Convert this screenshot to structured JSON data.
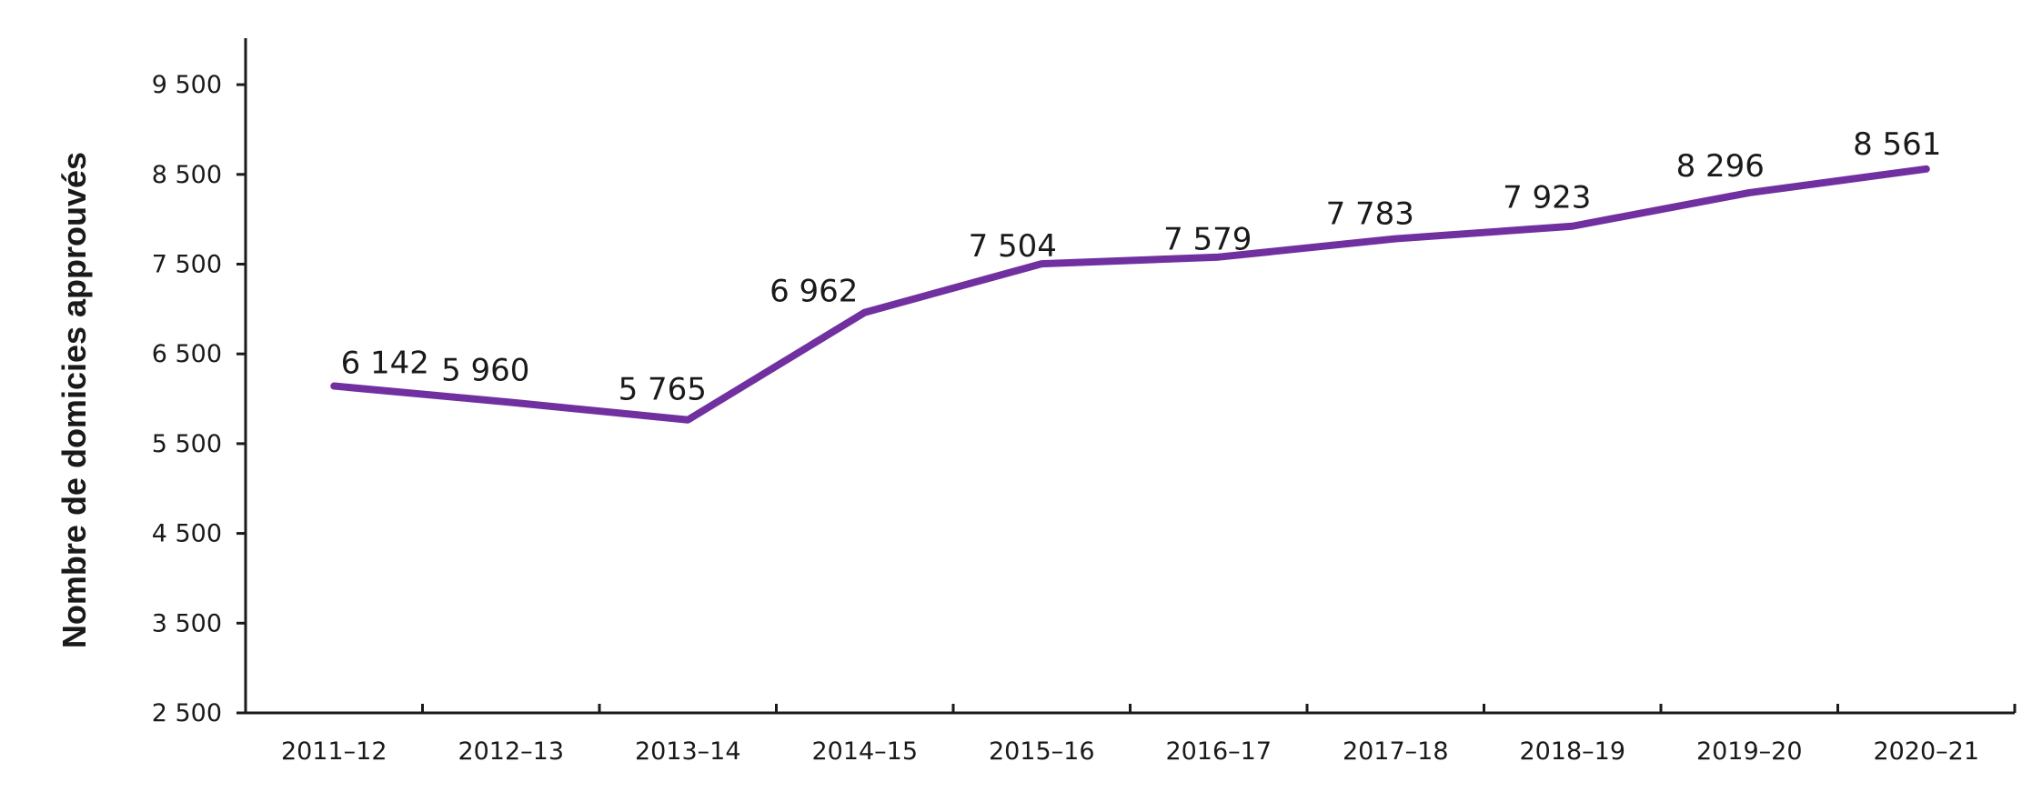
{
  "chart_data": {
    "type": "line",
    "title": "",
    "xlabel": "",
    "ylabel": "Nombre de domicies approuvés",
    "categories": [
      "2011–12",
      "2012–13",
      "2013–14",
      "2014–15",
      "2015–16",
      "2016–17",
      "2017–18",
      "2018–19",
      "2019–20",
      "2020–21"
    ],
    "values": [
      6142,
      5960,
      5765,
      6962,
      7504,
      7579,
      7783,
      7923,
      8296,
      8561
    ],
    "data_labels": [
      "6 142",
      "5 960",
      "5 765",
      "6 962",
      "7 504",
      "7 579",
      "7 783",
      "7 923",
      "8 296",
      "8 561"
    ],
    "ylim": [
      2500,
      10000
    ],
    "yticks": [
      2500,
      3500,
      4500,
      5500,
      6500,
      7500,
      8500,
      9500
    ],
    "ytick_labels": [
      "2 500",
      "3 500",
      "4 500",
      "5 500",
      "6 500",
      "7 500",
      "8 500",
      "9 500"
    ],
    "grid": false,
    "legend": "none",
    "line_color": "#7030a0"
  }
}
